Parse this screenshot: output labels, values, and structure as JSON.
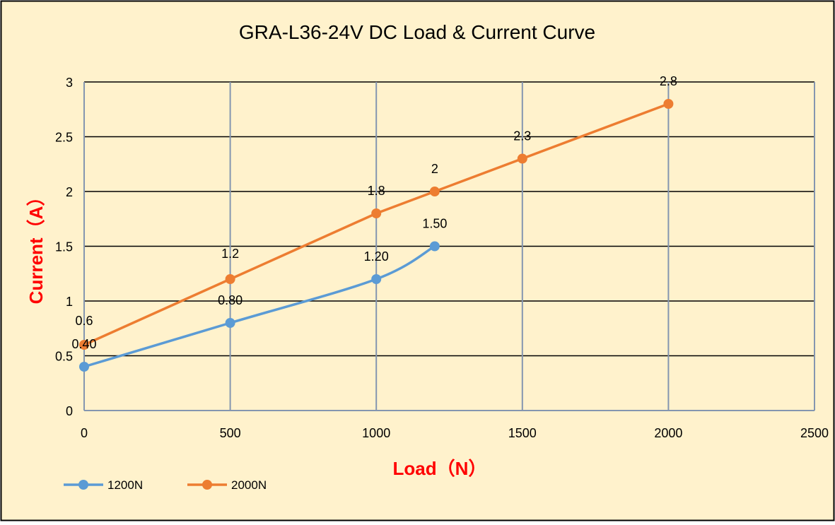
{
  "colors": {
    "background": "#FFF2CC",
    "border": "#000000",
    "hgrid": "#000000",
    "vgrid": "#8496B0",
    "axis_title": "#FF0000",
    "text": "#000000"
  },
  "chart_data": {
    "type": "line",
    "title": "GRA-L36-24V DC Load & Current Curve",
    "xlabel": "Load（N）",
    "ylabel": "Current（A）",
    "xlim": [
      0,
      2500
    ],
    "ylim": [
      0,
      3
    ],
    "xticks": [
      0,
      500,
      1000,
      1500,
      2000,
      2500
    ],
    "yticks": [
      0,
      0.5,
      1,
      1.5,
      2,
      2.5,
      3
    ],
    "ytick_labels": [
      "0",
      "0.5",
      "1",
      "1.5",
      "2",
      "2.5",
      "3"
    ],
    "grid": true,
    "legend_position": "bottom-left",
    "series": [
      {
        "name": "1200N",
        "color": "#5B9BD5",
        "smooth": true,
        "x": [
          0,
          500,
          1000,
          1200
        ],
        "y": [
          0.4,
          0.8,
          1.2,
          1.5
        ],
        "labels": [
          "0.40",
          "0.80",
          "1.20",
          "1.50"
        ]
      },
      {
        "name": "2000N",
        "color": "#ED7D31",
        "smooth": false,
        "x": [
          0,
          500,
          1000,
          1200,
          1500,
          2000
        ],
        "y": [
          0.6,
          1.2,
          1.8,
          2.0,
          2.3,
          2.8
        ],
        "labels": [
          "0.6",
          "1.2",
          "1.8",
          "2",
          "2.3",
          "2.8"
        ]
      }
    ]
  }
}
